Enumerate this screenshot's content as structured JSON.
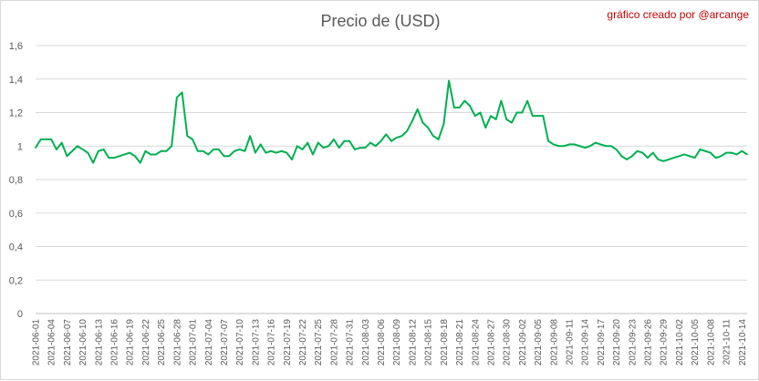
{
  "chart_data": {
    "type": "line",
    "title": "Precio de (USD)",
    "credit": "gráfico creado por @arcange",
    "xlabel": "",
    "ylabel": "",
    "ylim": [
      0,
      1.6
    ],
    "yticks": [
      0,
      0.2,
      0.4,
      0.6,
      0.8,
      1,
      1.2,
      1.4,
      1.6
    ],
    "ytick_labels": [
      "0",
      "0,2",
      "0,4",
      "0,6",
      "0,8",
      "1",
      "1,2",
      "1,4",
      "1,6"
    ],
    "grid": true,
    "legend": "none",
    "line_color": "#00b050",
    "grid_color": "#d9d9d9",
    "x_start": "2021-06-01",
    "x_end": "2021-10-15",
    "xticks": [
      "2021-06-01",
      "2021-06-04",
      "2021-06-07",
      "2021-06-10",
      "2021-06-13",
      "2021-06-16",
      "2021-06-19",
      "2021-06-22",
      "2021-06-25",
      "2021-06-28",
      "2021-07-01",
      "2021-07-04",
      "2021-07-07",
      "2021-07-10",
      "2021-07-13",
      "2021-07-16",
      "2021-07-19",
      "2021-07-22",
      "2021-07-25",
      "2021-07-28",
      "2021-07-31",
      "2021-08-03",
      "2021-08-06",
      "2021-08-09",
      "2021-08-12",
      "2021-08-15",
      "2021-08-18",
      "2021-08-21",
      "2021-08-24",
      "2021-08-27",
      "2021-08-30",
      "2021-09-02",
      "2021-09-05",
      "2021-09-08",
      "2021-09-11",
      "2021-09-14",
      "2021-09-17",
      "2021-09-20",
      "2021-09-23",
      "2021-09-26",
      "2021-09-29",
      "2021-10-02",
      "2021-10-05",
      "2021-10-08",
      "2021-10-11",
      "2021-10-14"
    ],
    "series": [
      {
        "values": [
          0.99,
          1.04,
          1.04,
          1.04,
          0.98,
          1.02,
          0.94,
          0.97,
          1.0,
          0.98,
          0.96,
          0.9,
          0.97,
          0.98,
          0.93,
          0.93,
          0.94,
          0.95,
          0.96,
          0.94,
          0.9,
          0.97,
          0.95,
          0.95,
          0.97,
          0.97,
          1.0,
          1.29,
          1.32,
          1.06,
          1.04,
          0.97,
          0.97,
          0.95,
          0.98,
          0.98,
          0.94,
          0.94,
          0.97,
          0.98,
          0.97,
          1.06,
          0.96,
          1.01,
          0.96,
          0.97,
          0.96,
          0.97,
          0.96,
          0.92,
          1.0,
          0.98,
          1.02,
          0.95,
          1.02,
          0.99,
          1.0,
          1.04,
          0.99,
          1.03,
          1.03,
          0.98,
          0.99,
          0.99,
          1.02,
          1.0,
          1.03,
          1.07,
          1.03,
          1.05,
          1.06,
          1.09,
          1.15,
          1.22,
          1.14,
          1.11,
          1.06,
          1.04,
          1.13,
          1.39,
          1.23,
          1.23,
          1.27,
          1.24,
          1.18,
          1.2,
          1.11,
          1.18,
          1.16,
          1.27,
          1.16,
          1.14,
          1.2,
          1.2,
          1.27,
          1.18,
          1.18,
          1.18,
          1.03,
          1.01,
          1.0,
          1.0,
          1.01,
          1.01,
          1.0,
          0.99,
          1.0,
          1.02,
          1.01,
          1.0,
          1.0,
          0.98,
          0.94,
          0.92,
          0.94,
          0.97,
          0.96,
          0.93,
          0.96,
          0.92,
          0.91,
          0.92,
          0.93,
          0.94,
          0.95,
          0.94,
          0.93,
          0.98,
          0.97,
          0.96,
          0.93,
          0.94,
          0.96,
          0.96,
          0.95,
          0.97,
          0.95
        ]
      }
    ]
  }
}
